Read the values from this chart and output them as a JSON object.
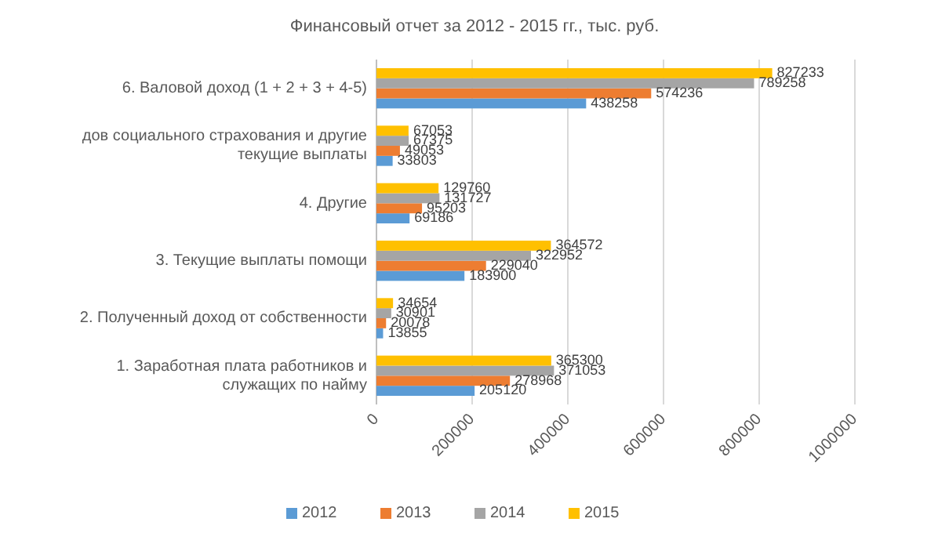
{
  "chart_data": {
    "type": "bar",
    "orientation": "horizontal",
    "title": "Финансовый отчет за 2012 - 2015 гг., тыс. руб.",
    "categories": [
      "6. Валовой доход (1 + 2 + 3 + 4-5)",
      "дов социального страхования и другие текущие выплаты",
      "4. Другие",
      "3. Текущие выплаты помощи",
      "2. Полученный доход от собственности",
      "1. Заработная плата работников и служащих по найму"
    ],
    "series": [
      {
        "name": "2012",
        "color": "#5b9bd5",
        "values": [
          438258,
          33803,
          69186,
          183900,
          13855,
          205120
        ]
      },
      {
        "name": "2013",
        "color": "#ed7d31",
        "values": [
          574236,
          49053,
          95203,
          229040,
          20078,
          278968
        ]
      },
      {
        "name": "2014",
        "color": "#a5a5a5",
        "values": [
          789258,
          67375,
          131727,
          322952,
          30901,
          371053
        ]
      },
      {
        "name": "2015",
        "color": "#ffc000",
        "values": [
          827233,
          67053,
          129760,
          364572,
          34654,
          365300
        ]
      }
    ],
    "xlim": [
      0,
      1000000
    ],
    "xticks": [
      0,
      200000,
      400000,
      600000,
      800000,
      1000000
    ],
    "grid": "x",
    "data_labels": true,
    "legend": "bottom"
  }
}
